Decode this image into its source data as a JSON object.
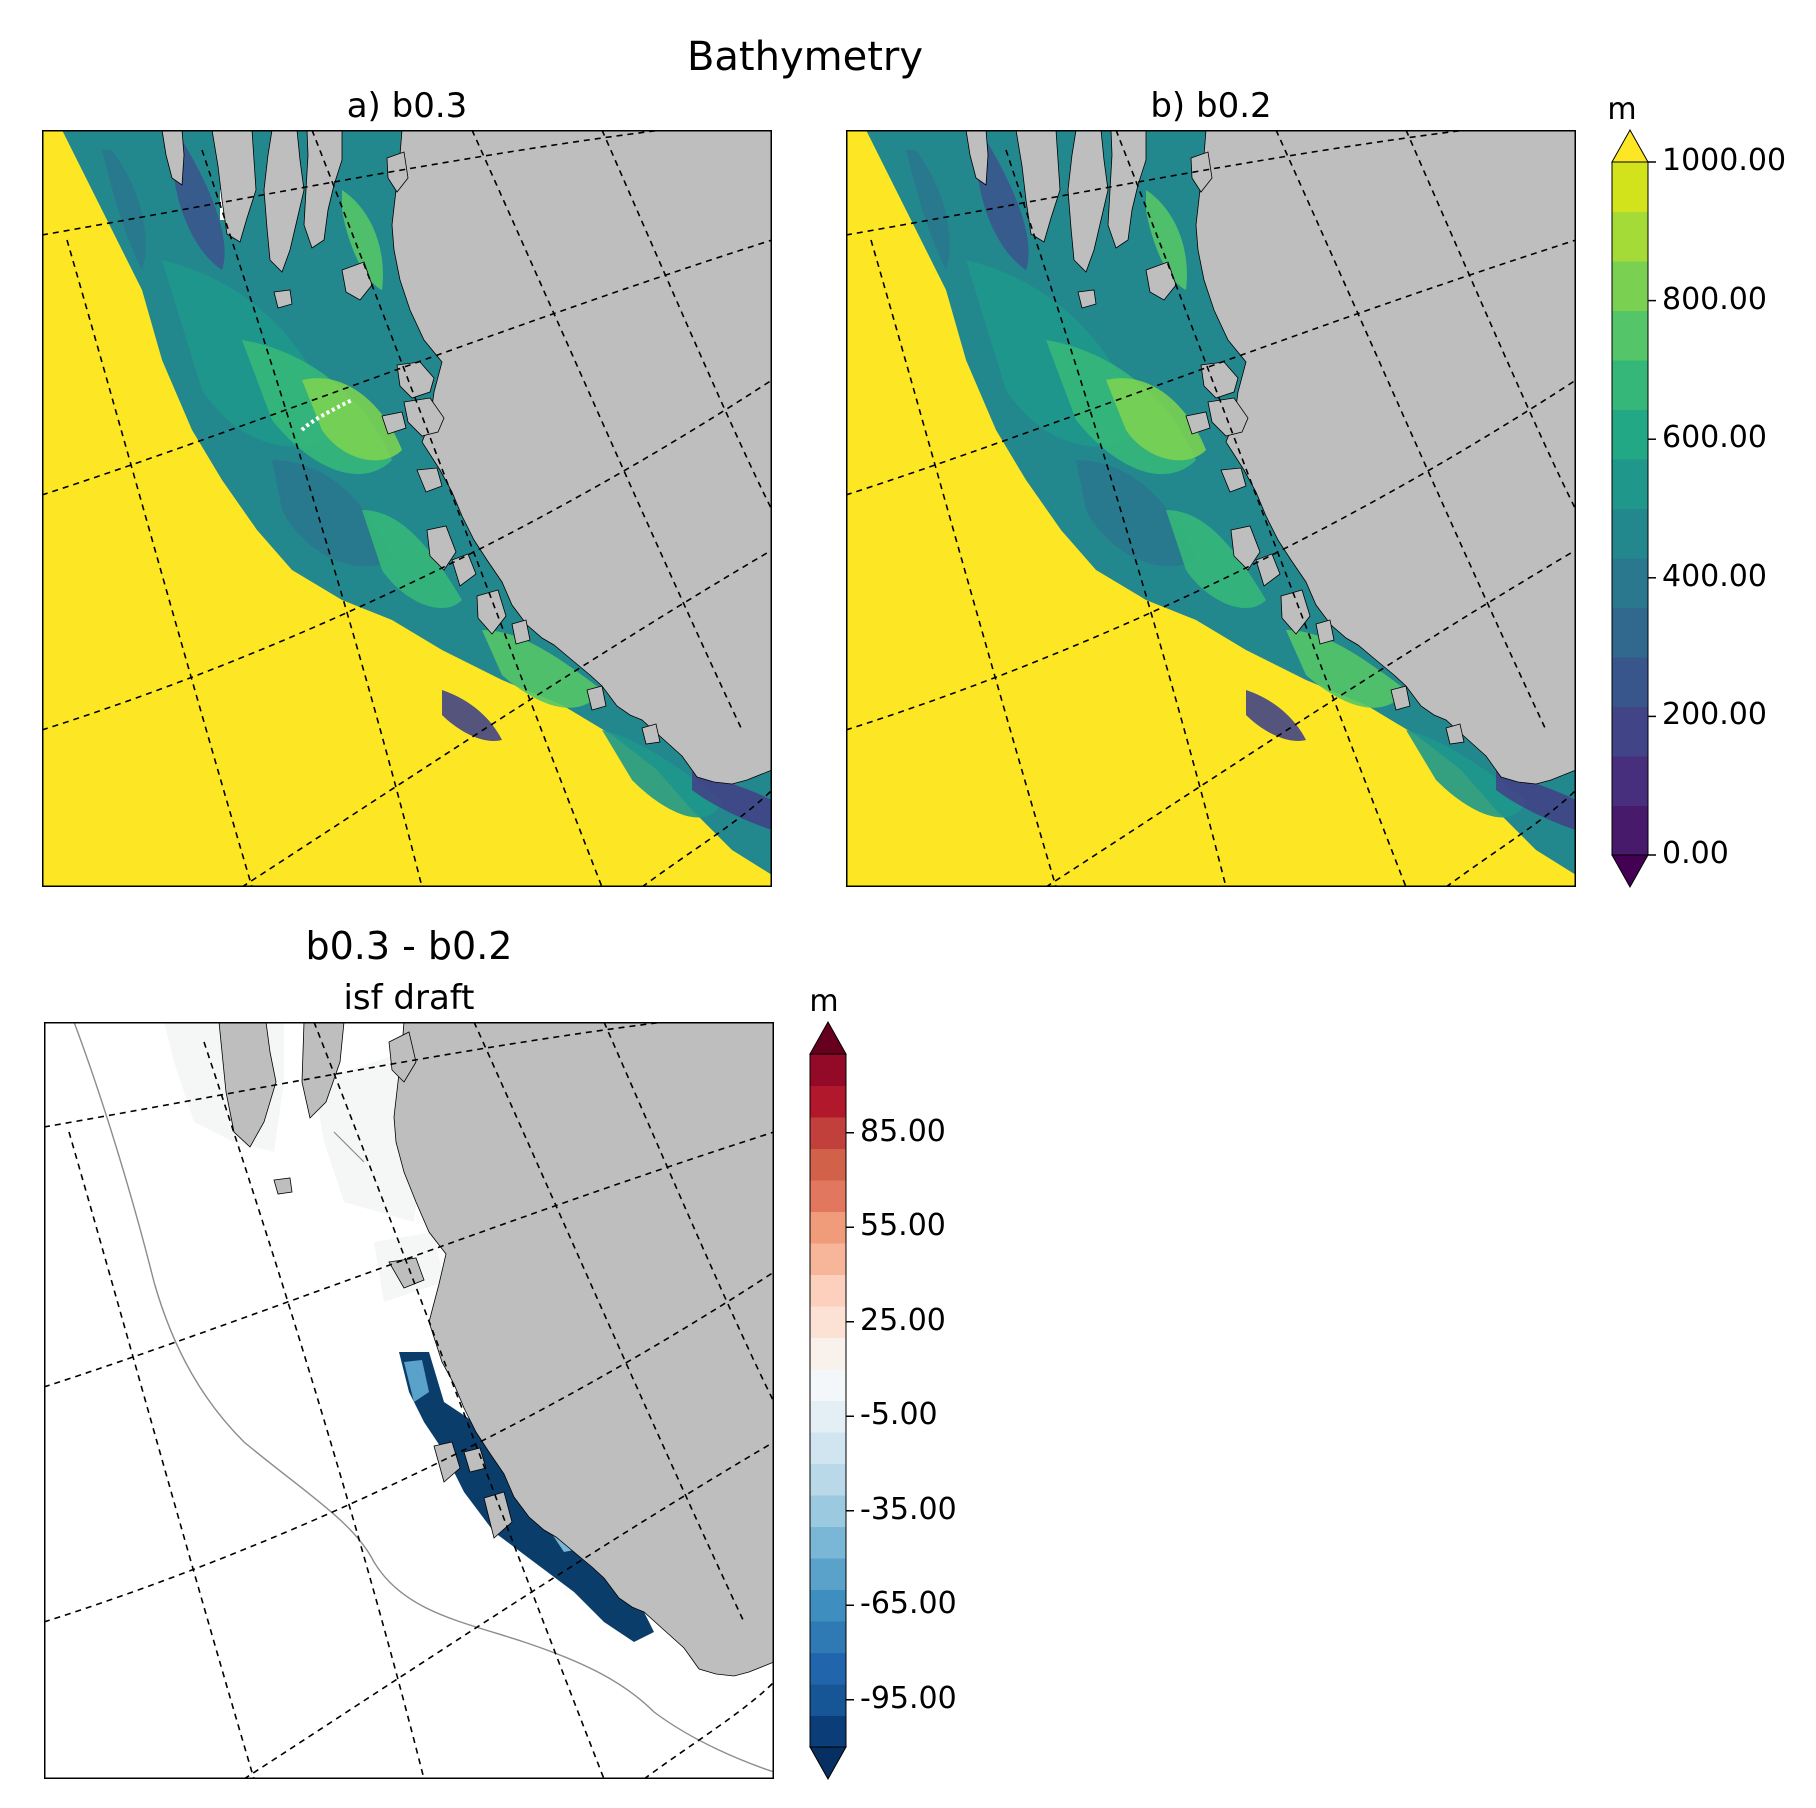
{
  "figure": {
    "title": "Bathymetry",
    "panel_a_title": "a) b0.3",
    "panel_b_title": "b) b0.2",
    "diff_title": "b0.3 - b0.2",
    "diff_subtitle": "isf draft"
  },
  "colors": {
    "land": "#bebebe",
    "open_ocean_fill": "#fde725",
    "frame": "#000000",
    "graticule": "#000000"
  },
  "colorbar_top": {
    "unit": "m",
    "ticks": [
      "0.00",
      "200.00",
      "400.00",
      "600.00",
      "800.00",
      "1000.00"
    ],
    "min": 0,
    "max": 1000,
    "extend": "both",
    "colors": [
      "#481a6c",
      "#472f7d",
      "#414487",
      "#39568c",
      "#31688e",
      "#2a788e",
      "#23888e",
      "#1f988b",
      "#22a884",
      "#35b779",
      "#54c568",
      "#7ad151",
      "#a5db36",
      "#d2e21b"
    ],
    "under_color": "#440154",
    "over_color": "#fde725"
  },
  "colorbar_bottom": {
    "unit": "m",
    "ticks": [
      "-95.00",
      "-65.00",
      "-35.00",
      "-5.00",
      "25.00",
      "55.00",
      "85.00"
    ],
    "min": -110,
    "max": 110,
    "extend": "both",
    "colors": [
      "#0b3d79",
      "#175696",
      "#2166ac",
      "#2f79b5",
      "#3f8ec0",
      "#5ba2cb",
      "#7ab6d6",
      "#9bc9e0",
      "#b9d9e9",
      "#d1e5f0",
      "#e3eef5",
      "#f4f7f9",
      "#f9f1ec",
      "#fbe2d4",
      "#fcd0bc",
      "#f7b599",
      "#f09b7a",
      "#e0775e",
      "#d16149",
      "#c1403b",
      "#b2182b",
      "#920a27"
    ],
    "under_color": "#053061",
    "over_color": "#67001f"
  },
  "diff_map": {
    "ocean_fill": "#ffffff",
    "shelf_fill": "#f4f7f6",
    "difference_fill": "#0b3d6b",
    "contour_color": "#8c8c8c"
  }
}
